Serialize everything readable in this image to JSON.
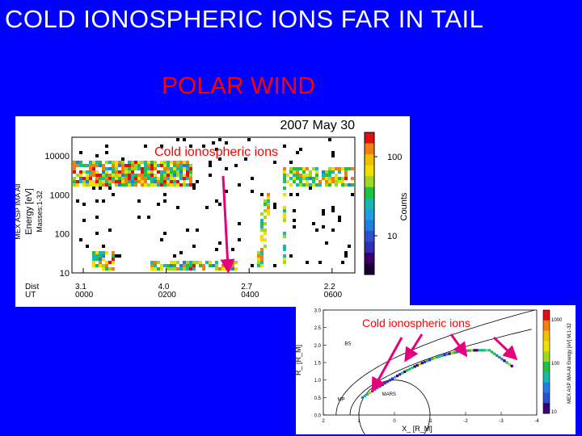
{
  "title": "COLD IONOSPHERIC IONS FAR IN TAIL",
  "subtitle": "POLAR WIND",
  "colors": {
    "background": "#0000ff",
    "title": "#ffffff",
    "subtitle": "#ff0000",
    "annotation": "#ff0000",
    "arrow": "#e6007e"
  },
  "chart_data": [
    {
      "type": "heatmap",
      "title": "2007 May 30",
      "ylabel_lines": [
        "MEX ASP IMA All",
        "Energy [eV]",
        "Masses:1-32"
      ],
      "y_ticks": [
        "10000",
        "1000",
        "100",
        "10"
      ],
      "ylim": [
        10,
        30000
      ],
      "y_scale": "log",
      "x_row_labels": [
        "Dist",
        "UT"
      ],
      "x_ticks": [
        {
          "dist": "3.1",
          "ut": "0000"
        },
        {
          "dist": "4.0",
          "ut": "0200"
        },
        {
          "dist": "2.7",
          "ut": "0400"
        },
        {
          "dist": "2.2",
          "ut": "0600"
        }
      ],
      "colorbar": {
        "label": "Counts",
        "ticks": [
          "100",
          "10"
        ]
      },
      "annotation": "Cold ionospheric ions",
      "grid": false
    },
    {
      "type": "scatter",
      "ylabel": "R_ [R_M]",
      "xlabel": "X_ [R_M]",
      "y_ticks": [
        "3.0",
        "2.5",
        "2.0",
        "1.5",
        "1.0",
        "0.5",
        "0.0"
      ],
      "x_ticks": [
        "2",
        "1",
        "0",
        "-1",
        "-2",
        "-3",
        "-4"
      ],
      "xlim": [
        2,
        -4
      ],
      "ylim": [
        0,
        3
      ],
      "boundary_labels": [
        "BS",
        "MP",
        "MARS"
      ],
      "colorbar": {
        "label": "MEX ASP IMA All Energy [eV] M:1-32",
        "ticks": [
          "1000",
          "100",
          "10"
        ]
      },
      "annotation": "Cold ionospheric ions",
      "grid": false
    }
  ]
}
